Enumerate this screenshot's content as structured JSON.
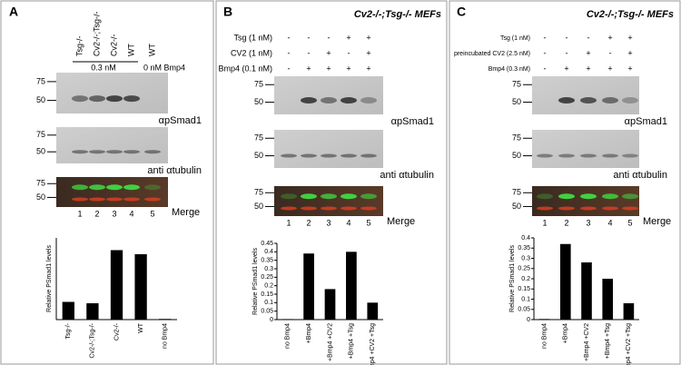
{
  "panels": [
    {
      "label": "A",
      "column_labels": [
        "Tsg-/-",
        "Cv2-/-;Tsg-/-",
        "Cv2-/-",
        "WT",
        "WT"
      ],
      "dose_labels": [
        "0.3 nM",
        "0 nM Bmp4"
      ],
      "markers": [
        "75",
        "50"
      ],
      "blots": [
        "αpSmad1",
        "anti αtubulin",
        "Merge"
      ],
      "lanes": [
        "1",
        "2",
        "3",
        "4",
        "5"
      ]
    },
    {
      "label": "B",
      "title": "Cv2-/-;Tsg-/- MEFs",
      "treatments": [
        {
          "name": "Tsg (1 nM)",
          "signs": [
            "-",
            "-",
            "-",
            "+",
            "+"
          ]
        },
        {
          "name": "CV2 (1 nM)",
          "signs": [
            "-",
            "-",
            "+",
            "-",
            "+"
          ]
        },
        {
          "name": "Bmp4 (0.1 nM)",
          "signs": [
            "-",
            "+",
            "+",
            "+",
            "+"
          ]
        }
      ],
      "markers": [
        "75",
        "50"
      ],
      "blots": [
        "αpSmad1",
        "anti αtubulin",
        "Merge"
      ],
      "lanes": [
        "1",
        "2",
        "3",
        "4",
        "5"
      ]
    },
    {
      "label": "C",
      "title": "Cv2-/-;Tsg-/- MEFs",
      "treatments": [
        {
          "name": "Tsg (1 nM)",
          "signs": [
            "-",
            "-",
            "-",
            "+",
            "+"
          ]
        },
        {
          "name": "preincubated CV2 (2.5 nM)",
          "signs": [
            "-",
            "-",
            "+",
            "-",
            "+"
          ]
        },
        {
          "name": "Bmp4 (0.3 nM)",
          "signs": [
            "-",
            "+",
            "+",
            "+",
            "+"
          ]
        }
      ],
      "markers": [
        "75",
        "50"
      ],
      "blots": [
        "αpSmad1",
        "anti αtubulin",
        "Merge"
      ],
      "lanes": [
        "1",
        "2",
        "3",
        "4",
        "5"
      ]
    }
  ],
  "chart_data": [
    {
      "type": "bar",
      "ylabel": "Relative PSmad1 levels",
      "categories": [
        "Tsg-/-",
        "Cv2-/-;Tsg-/-",
        "Cv2-/-",
        "WT",
        "no Bmp4"
      ],
      "values": [
        0.13,
        0.12,
        0.51,
        0.48,
        0.005
      ],
      "color": "#000000",
      "ylim": [
        0,
        0.6
      ]
    },
    {
      "type": "bar",
      "ylabel": "Relative PSmad1 levels",
      "categories": [
        "no Bmp4",
        "+Bmp4",
        "+Bmp4 +CV2",
        "+Bmp4 +Tsg",
        "+Bmp4 +CV2 +Tsg"
      ],
      "values": [
        0.003,
        0.39,
        0.18,
        0.4,
        0.1
      ],
      "color": "#000000",
      "ylim": [
        0,
        0.45
      ],
      "yticks": [
        0,
        0.05,
        0.1,
        0.15,
        0.2,
        0.25,
        0.3,
        0.35,
        0.4,
        0.45
      ]
    },
    {
      "type": "bar",
      "ylabel": "Relative PSmad1 levels",
      "categories": [
        "no Bmp4",
        "+Bmp4",
        "+Bmp4 +CV2",
        "+Bmp4 +Tsg",
        "+Bmp4 +CV2 +Tsg"
      ],
      "values": [
        0.003,
        0.37,
        0.28,
        0.2,
        0.08
      ],
      "color": "#000000",
      "ylim": [
        0,
        0.4
      ],
      "yticks": [
        0,
        0.05,
        0.1,
        0.15,
        0.2,
        0.25,
        0.3,
        0.35,
        0.4
      ]
    }
  ]
}
